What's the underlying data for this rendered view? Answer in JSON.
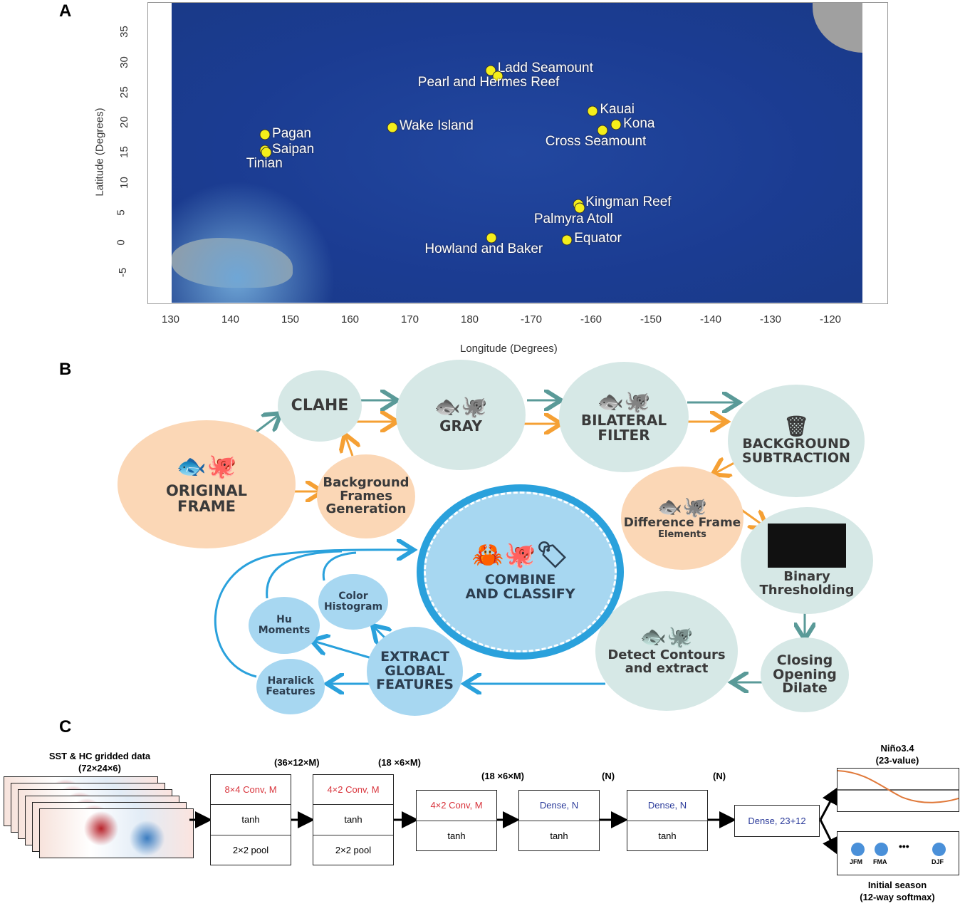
{
  "panels": {
    "a": "A",
    "b": "B",
    "c": "C"
  },
  "map": {
    "xlabel": "Longitude (Degrees)",
    "ylabel": "Latitude (Degrees)",
    "x_ticks": [
      "130",
      "140",
      "150",
      "160",
      "170",
      "180",
      "-170",
      "-160",
      "-150",
      "-140",
      "-130",
      "-120"
    ],
    "y_ticks": [
      "35",
      "30",
      "25",
      "20",
      "15",
      "10",
      "5",
      "0",
      "-5"
    ],
    "ocean_color": "#1d3f9a",
    "marker_color": "#f4ee1a",
    "sites": [
      {
        "name": "Ladd Seamount",
        "lon": -176.7,
        "lat": 28.6
      },
      {
        "name": "Pearl and Hermes Reef",
        "lon": -175.5,
        "lat": 27.7
      },
      {
        "name": "Kauai",
        "lon": -159.6,
        "lat": 21.9
      },
      {
        "name": "Kona",
        "lon": -155.7,
        "lat": 19.6
      },
      {
        "name": "Cross Seamount",
        "lon": -158.0,
        "lat": 18.7
      },
      {
        "name": "Wake Island",
        "lon": 166.9,
        "lat": 19.2
      },
      {
        "name": "Pagan",
        "lon": 145.6,
        "lat": 18.0
      },
      {
        "name": "Saipan",
        "lon": 145.6,
        "lat": 15.4
      },
      {
        "name": "Tinian",
        "lon": 145.8,
        "lat": 15.0
      },
      {
        "name": "Kingman Reef",
        "lon": -162.0,
        "lat": 6.4
      },
      {
        "name": "Palmyra Atoll",
        "lon": -161.8,
        "lat": 5.8
      },
      {
        "name": "Equator",
        "lon": -163.9,
        "lat": 0.5
      },
      {
        "name": "Howland and Baker",
        "lon": -176.5,
        "lat": 0.8
      }
    ]
  },
  "pipeline": {
    "original": [
      "ORIGINAL",
      "FRAME"
    ],
    "clahe": "CLAHE",
    "gray": "GRAY",
    "bilateral": [
      "BILATERAL",
      "FILTER"
    ],
    "bg_sub": [
      "BACKGROUND",
      "SUBTRACTION"
    ],
    "bg_frames": [
      "Background",
      "Frames",
      "Generation"
    ],
    "diff": [
      "Difference Frame",
      "Elements"
    ],
    "binary": [
      "Binary",
      "Thresholding"
    ],
    "morph": [
      "Closing",
      "Opening",
      "Dilate"
    ],
    "contours": [
      "Detect Contours",
      "and extract"
    ],
    "extract": [
      "EXTRACT",
      "GLOBAL",
      "FEATURES"
    ],
    "combine": [
      "COMBINE",
      "AND CLASSIFY"
    ],
    "color_hist": [
      "Color",
      "Histogram"
    ],
    "hu": [
      "Hu",
      "Moments"
    ],
    "haralick": [
      "Haralick",
      "Features"
    ]
  },
  "network": {
    "input_title": "SST & HC gridded data",
    "input_dims": "(72×24×6)",
    "layers": [
      {
        "dims": "(36×12×M)",
        "cells": [
          "8×4 Conv, M",
          "tanh",
          "2×2 pool"
        ]
      },
      {
        "dims": "(18 ×6×M)",
        "cells": [
          "4×2 Conv, M",
          "tanh",
          "2×2 pool"
        ]
      },
      {
        "dims": "(18 ×6×M)",
        "cells": [
          "4×2 Conv, M",
          "tanh"
        ]
      },
      {
        "dims": "(N)",
        "cells": [
          "Dense, N",
          "tanh"
        ]
      },
      {
        "dims": "(N)",
        "cells": [
          "Dense, N",
          "tanh"
        ]
      }
    ],
    "output_dense": "Dense, 23+12",
    "nino_title": "Niño3.4",
    "nino_sub": "(23-value)",
    "season_labels": [
      "JFM",
      "FMA",
      "DJF"
    ],
    "season_ellipsis": "•••",
    "season_title": "Initial season",
    "season_sub": "(12-way softmax)"
  }
}
